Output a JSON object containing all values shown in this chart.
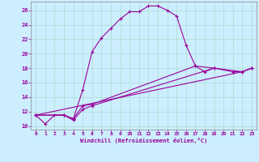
{
  "xlabel": "Windchill (Refroidissement éolien,°C)",
  "bg_color": "#cceeff",
  "grid_color": "#aaddcc",
  "line_color": "#990099",
  "ylim": [
    9.5,
    27.2
  ],
  "xlim": [
    -0.5,
    23.5
  ],
  "yticks": [
    10,
    12,
    14,
    16,
    18,
    20,
    22,
    24,
    26
  ],
  "xticks": [
    0,
    1,
    2,
    3,
    4,
    5,
    6,
    7,
    8,
    9,
    10,
    11,
    12,
    13,
    14,
    15,
    16,
    17,
    18,
    19,
    20,
    21,
    22,
    23
  ],
  "s1x": [
    0,
    1,
    2,
    3,
    4,
    5,
    6,
    7,
    8,
    9,
    10,
    11,
    12,
    13,
    14,
    15,
    16,
    17,
    18,
    19
  ],
  "s1y": [
    11.5,
    10.3,
    11.5,
    11.5,
    11.0,
    15.0,
    20.3,
    22.2,
    23.5,
    24.8,
    25.8,
    25.8,
    26.6,
    26.6,
    26.0,
    25.2,
    21.2,
    18.3,
    17.5,
    18.0
  ],
  "s2x": [
    0,
    3,
    4,
    5,
    6,
    17,
    19,
    21,
    22,
    23
  ],
  "s2y": [
    11.5,
    11.5,
    11.0,
    12.8,
    13.0,
    18.3,
    18.0,
    17.5,
    17.5,
    18.0
  ],
  "s3x": [
    0,
    3,
    4,
    5,
    6,
    19,
    22,
    23
  ],
  "s3y": [
    11.5,
    11.5,
    10.8,
    12.3,
    12.8,
    18.0,
    17.5,
    18.0
  ],
  "s4x": [
    0,
    22,
    23
  ],
  "s4y": [
    11.5,
    17.5,
    18.0
  ]
}
